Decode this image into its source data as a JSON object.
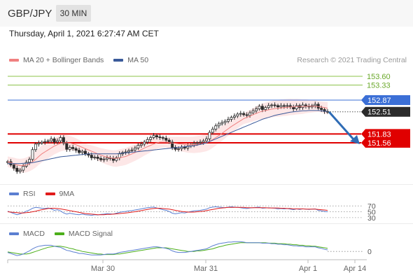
{
  "header": {
    "symbol": "GBP/JPY",
    "timeframe": "30 MIN"
  },
  "datetime": "Thursday, April 1, 2021 6:27:47 AM CET",
  "copyright": "Research © 2021 Trading Central",
  "legends": {
    "price": [
      {
        "name": "MA 20 + Bollinger Bands",
        "color": "#f08080"
      },
      {
        "name": "MA 50",
        "color": "#3a5a9a"
      }
    ],
    "rsi": [
      {
        "name": "RSI",
        "color": "#5b7fd1"
      },
      {
        "name": "9MA",
        "color": "#e11b1b"
      }
    ],
    "macd": [
      {
        "name": "MACD",
        "color": "#5b7fd1"
      },
      {
        "name": "MACD Signal",
        "color": "#4caf1a"
      }
    ]
  },
  "colors": {
    "green_level": "#8bc34a",
    "blue_level": "#3b6fd6",
    "red_level": "#e00000",
    "current_price_bg": "#2b2b2b",
    "arrow": "#2f6cb5",
    "bollinger_fill": "#fde3e3",
    "candle": "#2a2a2a"
  },
  "chart_data": [
    {
      "type": "candlestick",
      "title": "GBP/JPY",
      "timeframe": "30 MIN",
      "ylim": [
        150.4,
        153.9
      ],
      "x_tick_labels": [
        "Mar 30",
        "Mar 31",
        "Apr 1",
        "Apr 14"
      ],
      "levels": [
        {
          "value": 153.6,
          "label": "153.60",
          "color": "green"
        },
        {
          "value": 153.33,
          "label": "153.33",
          "color": "green"
        },
        {
          "value": 152.87,
          "label": "152.87",
          "color": "blue"
        },
        {
          "value": 151.83,
          "label": "151.83",
          "color": "red"
        },
        {
          "value": 151.56,
          "label": "151.56",
          "color": "red"
        }
      ],
      "current_price": {
        "value": 152.51,
        "label": "152.51"
      },
      "close_series": [
        150.98,
        150.88,
        150.78,
        150.68,
        150.72,
        150.84,
        150.96,
        151.05,
        151.35,
        151.52,
        151.55,
        151.58,
        151.6,
        151.62,
        151.68,
        151.58,
        151.62,
        151.72,
        151.54,
        151.36,
        151.42,
        151.38,
        151.33,
        151.26,
        151.3,
        151.22,
        151.18,
        151.1,
        151.12,
        151.08,
        151.04,
        151.06,
        151.1,
        151.08,
        151.02,
        151.1,
        151.22,
        151.26,
        151.28,
        151.32,
        151.34,
        151.4,
        151.48,
        151.52,
        151.58,
        151.66,
        151.72,
        151.78,
        151.74,
        151.72,
        151.7,
        151.64,
        151.58,
        151.42,
        151.36,
        151.38,
        151.42,
        151.4,
        151.46,
        151.5,
        151.54,
        151.56,
        151.58,
        151.62,
        151.68,
        151.88,
        151.98,
        152.08,
        152.14,
        152.18,
        152.22,
        152.28,
        152.34,
        152.38,
        152.44,
        152.46,
        152.42,
        152.4,
        152.48,
        152.54,
        152.6,
        152.68,
        152.58,
        152.64,
        152.7,
        152.72,
        152.7,
        152.66,
        152.7,
        152.68,
        152.7,
        152.66,
        152.6,
        152.7,
        152.64,
        152.72,
        152.68,
        152.66,
        152.7,
        152.74,
        152.62,
        152.58,
        152.52,
        152.51
      ],
      "ma20": [
        150.98,
        150.95,
        150.92,
        150.88,
        150.86,
        150.86,
        150.88,
        150.92,
        150.98,
        151.05,
        151.14,
        151.22,
        151.28,
        151.34,
        151.4,
        151.46,
        151.5,
        151.54,
        151.56,
        151.56,
        151.55,
        151.53,
        151.5,
        151.46,
        151.42,
        151.38,
        151.34,
        151.3,
        151.26,
        151.22,
        151.18,
        151.15,
        151.12,
        151.1,
        151.08,
        151.08,
        151.1,
        151.12,
        151.14,
        151.18,
        151.22,
        151.26,
        151.3,
        151.35,
        151.4,
        151.44,
        151.48,
        151.52,
        151.56,
        151.58,
        151.58,
        151.58,
        151.57,
        151.55,
        151.54,
        151.53,
        151.52,
        151.51,
        151.5,
        151.5,
        151.5,
        151.51,
        151.52,
        151.54,
        151.56,
        151.6,
        151.66,
        151.72,
        151.78,
        151.85,
        151.92,
        151.99,
        152.06,
        152.12,
        152.18,
        152.24,
        152.3,
        152.34,
        152.38,
        152.42,
        152.46,
        152.5,
        152.53,
        152.55,
        152.57,
        152.59,
        152.61,
        152.62,
        152.63,
        152.64,
        152.65,
        152.66,
        152.66,
        152.67,
        152.67,
        152.67,
        152.68,
        152.68,
        152.68,
        152.68,
        152.67,
        152.66,
        152.64,
        152.62
      ],
      "ma50": [
        150.92,
        150.92,
        150.92,
        150.92,
        150.92,
        150.93,
        150.93,
        150.94,
        150.95,
        150.97,
        150.99,
        151.01,
        151.03,
        151.05,
        151.07,
        151.09,
        151.11,
        151.13,
        151.14,
        151.15,
        151.16,
        151.17,
        151.18,
        151.19,
        151.2,
        151.21,
        151.22,
        151.22,
        151.22,
        151.22,
        151.22,
        151.22,
        151.22,
        151.22,
        151.22,
        151.22,
        151.23,
        151.24,
        151.25,
        151.26,
        151.27,
        151.28,
        151.29,
        151.3,
        151.31,
        151.32,
        151.33,
        151.34,
        151.35,
        151.36,
        151.37,
        151.38,
        151.39,
        151.4,
        151.41,
        151.42,
        151.43,
        151.44,
        151.45,
        151.46,
        151.47,
        151.49,
        151.51,
        151.53,
        151.56,
        151.6,
        151.64,
        151.68,
        151.72,
        151.76,
        151.8,
        151.84,
        151.88,
        151.92,
        151.96,
        152.0,
        152.04,
        152.08,
        152.12,
        152.16,
        152.2,
        152.24,
        152.28,
        152.31,
        152.34,
        152.37,
        152.4,
        152.42,
        152.44,
        152.46,
        152.48,
        152.5,
        152.51,
        152.52,
        152.53,
        152.54,
        152.54,
        152.55,
        152.55,
        152.55,
        152.55,
        152.54,
        152.53,
        152.52
      ],
      "projection": {
        "from": 152.51,
        "to": 151.56
      }
    },
    {
      "type": "line",
      "title": "RSI",
      "ylim": [
        25,
        80
      ],
      "y_tick_labels": [
        "70",
        "50",
        "30"
      ],
      "series": [
        {
          "name": "RSI",
          "values": [
            52,
            48,
            44,
            40,
            43,
            47,
            52,
            56,
            62,
            65,
            64,
            62,
            61,
            63,
            60,
            55,
            57,
            53,
            46,
            42,
            45,
            43,
            41,
            40,
            42,
            40,
            39,
            38,
            40,
            39,
            41,
            42,
            44,
            43,
            42,
            45,
            48,
            50,
            51,
            53,
            54,
            56,
            58,
            60,
            62,
            64,
            65,
            66,
            63,
            60,
            57,
            55,
            51,
            45,
            43,
            45,
            47,
            46,
            49,
            51,
            53,
            54,
            55,
            57,
            59,
            64,
            66,
            67,
            66,
            65,
            64,
            66,
            67,
            66,
            65,
            64,
            62,
            61,
            63,
            64,
            65,
            66,
            62,
            63,
            64,
            63,
            62,
            60,
            61,
            60,
            61,
            59,
            57,
            60,
            58,
            60,
            59,
            58,
            59,
            60,
            55,
            53,
            51,
            50
          ]
        },
        {
          "name": "9MA",
          "values": [
            50,
            49,
            48,
            47,
            46,
            46,
            47,
            48,
            50,
            52,
            55,
            57,
            59,
            61,
            62,
            62,
            61,
            60,
            58,
            56,
            54,
            52,
            50,
            48,
            46,
            44,
            43,
            42,
            41,
            40,
            40,
            40,
            41,
            41,
            42,
            43,
            44,
            45,
            46,
            47,
            49,
            50,
            52,
            54,
            56,
            58,
            60,
            61,
            62,
            62,
            61,
            60,
            59,
            57,
            55,
            53,
            51,
            50,
            49,
            49,
            49,
            50,
            51,
            52,
            54,
            56,
            58,
            60,
            62,
            63,
            64,
            65,
            65,
            65,
            65,
            65,
            65,
            64,
            64,
            64,
            64,
            64,
            64,
            64,
            63,
            63,
            63,
            63,
            62,
            62,
            61,
            61,
            60,
            60,
            60,
            60,
            59,
            59,
            59,
            59,
            58,
            57,
            56,
            55
          ]
        }
      ]
    },
    {
      "type": "line",
      "title": "MACD",
      "y_tick_labels": [
        "0"
      ],
      "series": [
        {
          "name": "MACD",
          "values": [
            -0.02,
            -0.04,
            -0.06,
            -0.08,
            -0.07,
            -0.05,
            -0.02,
            0.01,
            0.05,
            0.08,
            0.1,
            0.11,
            0.12,
            0.12,
            0.12,
            0.1,
            0.09,
            0.08,
            0.05,
            0.02,
            0.01,
            -0.01,
            -0.02,
            -0.04,
            -0.04,
            -0.05,
            -0.06,
            -0.07,
            -0.07,
            -0.07,
            -0.07,
            -0.06,
            -0.05,
            -0.05,
            -0.05,
            -0.04,
            -0.02,
            -0.01,
            0.0,
            0.01,
            0.02,
            0.03,
            0.04,
            0.05,
            0.06,
            0.07,
            0.08,
            0.09,
            0.09,
            0.08,
            0.07,
            0.06,
            0.04,
            0.01,
            -0.01,
            -0.02,
            -0.02,
            -0.02,
            -0.01,
            0.0,
            0.01,
            0.02,
            0.03,
            0.04,
            0.05,
            0.08,
            0.11,
            0.13,
            0.15,
            0.16,
            0.17,
            0.18,
            0.18,
            0.19,
            0.19,
            0.19,
            0.18,
            0.17,
            0.17,
            0.17,
            0.17,
            0.17,
            0.16,
            0.16,
            0.16,
            0.15,
            0.15,
            0.14,
            0.14,
            0.13,
            0.13,
            0.12,
            0.11,
            0.11,
            0.1,
            0.1,
            0.09,
            0.09,
            0.09,
            0.09,
            0.07,
            0.06,
            0.04,
            0.03
          ]
        },
        {
          "name": "MACD Signal",
          "values": [
            -0.01,
            -0.02,
            -0.03,
            -0.04,
            -0.05,
            -0.05,
            -0.05,
            -0.04,
            -0.02,
            0.0,
            0.02,
            0.04,
            0.06,
            0.08,
            0.09,
            0.1,
            0.1,
            0.1,
            0.09,
            0.08,
            0.06,
            0.05,
            0.03,
            0.02,
            0.0,
            -0.01,
            -0.02,
            -0.03,
            -0.04,
            -0.05,
            -0.05,
            -0.06,
            -0.06,
            -0.06,
            -0.06,
            -0.05,
            -0.05,
            -0.04,
            -0.03,
            -0.02,
            -0.01,
            0.0,
            0.01,
            0.02,
            0.03,
            0.04,
            0.05,
            0.06,
            0.07,
            0.07,
            0.07,
            0.07,
            0.06,
            0.05,
            0.04,
            0.03,
            0.02,
            0.01,
            0.0,
            0.0,
            0.0,
            0.01,
            0.01,
            0.02,
            0.03,
            0.04,
            0.05,
            0.07,
            0.09,
            0.1,
            0.12,
            0.13,
            0.14,
            0.15,
            0.16,
            0.17,
            0.17,
            0.17,
            0.17,
            0.17,
            0.17,
            0.17,
            0.17,
            0.17,
            0.16,
            0.16,
            0.16,
            0.15,
            0.15,
            0.15,
            0.14,
            0.14,
            0.13,
            0.13,
            0.12,
            0.12,
            0.11,
            0.11,
            0.1,
            0.1,
            0.09,
            0.08,
            0.07,
            0.06
          ]
        }
      ]
    }
  ]
}
